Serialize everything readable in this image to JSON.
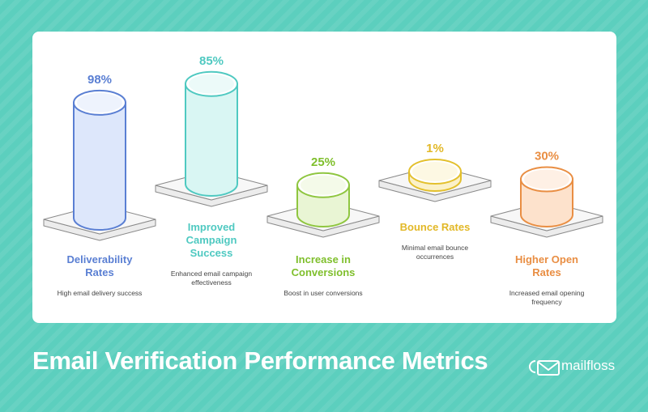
{
  "title": "Email Verification Performance Metrics",
  "brand": "mailfloss",
  "chart_data": {
    "type": "bar",
    "categories": [
      "Deliverability Rates",
      "Improved Campaign Success",
      "Increase in Conversions",
      "Bounce Rates",
      "Higher Open Rates"
    ],
    "values": [
      98,
      85,
      25,
      1,
      30
    ],
    "value_labels": [
      "98%",
      "85%",
      "25%",
      "1%",
      "30%"
    ],
    "labels": [
      [
        "Deliverability",
        "Rates"
      ],
      [
        "Improved",
        "Campaign",
        "Success"
      ],
      [
        "Increase in",
        "Conversions"
      ],
      [
        "Bounce Rates"
      ],
      [
        "Higher Open",
        "Rates"
      ]
    ],
    "descriptions": [
      [
        "High email delivery success"
      ],
      [
        "Enhanced email campaign",
        "effectiveness"
      ],
      [
        "Boost in user conversions"
      ],
      [
        "Minimal email bounce",
        "occurrences"
      ],
      [
        "Increased email opening",
        "frequency"
      ]
    ],
    "colors": [
      {
        "stroke": "#5a7fd3",
        "fill": "#dde7fb",
        "label": "#5a7fd3"
      },
      {
        "stroke": "#4fc9c1",
        "fill": "#d9f6f3",
        "label": "#4fc9c1"
      },
      {
        "stroke": "#8fc640",
        "fill": "#e9f5d4",
        "label": "#7fbf2c"
      },
      {
        "stroke": "#e3c02d",
        "fill": "#fbf1c8",
        "label": "#e2b827"
      },
      {
        "stroke": "#e98e43",
        "fill": "#fde2cc",
        "label": "#e98e43"
      }
    ]
  }
}
